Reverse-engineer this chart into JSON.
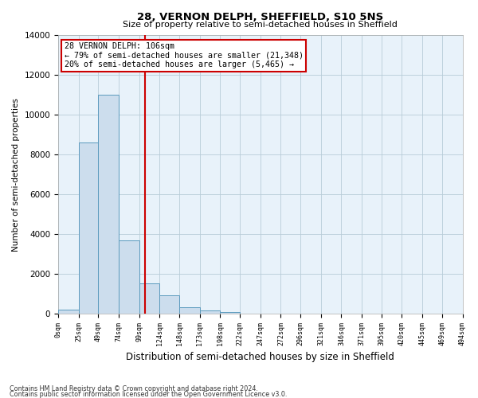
{
  "title": "28, VERNON DELPH, SHEFFIELD, S10 5NS",
  "subtitle": "Size of property relative to semi-detached houses in Sheffield",
  "xlabel": "Distribution of semi-detached houses by size in Sheffield",
  "ylabel": "Number of semi-detached properties",
  "property_size": 106,
  "annotation_line1": "28 VERNON DELPH: 106sqm",
  "annotation_line2": "← 79% of semi-detached houses are smaller (21,348)",
  "annotation_line3": "20% of semi-detached houses are larger (5,465) →",
  "bar_edges": [
    0,
    25,
    49,
    74,
    99,
    124,
    148,
    173,
    198,
    222,
    247,
    272,
    296,
    321,
    346,
    371,
    395,
    420,
    445,
    469,
    494
  ],
  "bar_heights": [
    200,
    8600,
    11000,
    3700,
    1500,
    900,
    300,
    150,
    70,
    0,
    0,
    0,
    0,
    0,
    0,
    0,
    0,
    0,
    0,
    0
  ],
  "bar_color": "#ccdded",
  "bar_edge_color": "#5b9abd",
  "vline_color": "#cc0000",
  "annotation_box_edgecolor": "#cc0000",
  "plot_bg_color": "#e8f2fa",
  "fig_bg_color": "#ffffff",
  "grid_color": "#b8ccd8",
  "ylim": [
    0,
    14000
  ],
  "yticks": [
    0,
    2000,
    4000,
    6000,
    8000,
    10000,
    12000,
    14000
  ],
  "tick_labels": [
    "0sqm",
    "25sqm",
    "49sqm",
    "74sqm",
    "99sqm",
    "124sqm",
    "148sqm",
    "173sqm",
    "198sqm",
    "222sqm",
    "247sqm",
    "272sqm",
    "296sqm",
    "321sqm",
    "346sqm",
    "371sqm",
    "395sqm",
    "420sqm",
    "445sqm",
    "469sqm",
    "494sqm"
  ],
  "footnote1": "Contains HM Land Registry data © Crown copyright and database right 2024.",
  "footnote2": "Contains public sector information licensed under the Open Government Licence v3.0."
}
